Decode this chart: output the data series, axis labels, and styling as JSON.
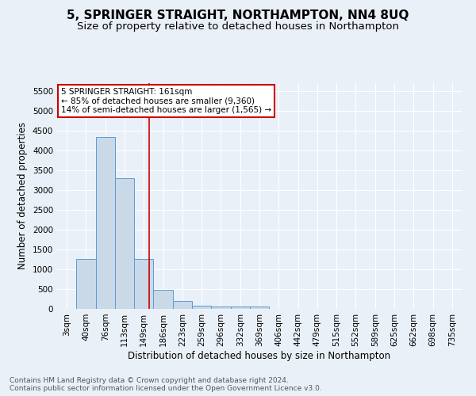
{
  "title": "5, SPRINGER STRAIGHT, NORTHAMPTON, NN4 8UQ",
  "subtitle": "Size of property relative to detached houses in Northampton",
  "xlabel": "Distribution of detached houses by size in Northampton",
  "ylabel": "Number of detached properties",
  "footnote1": "Contains HM Land Registry data © Crown copyright and database right 2024.",
  "footnote2": "Contains public sector information licensed under the Open Government Licence v3.0.",
  "bin_labels": [
    "3sqm",
    "40sqm",
    "76sqm",
    "113sqm",
    "149sqm",
    "186sqm",
    "223sqm",
    "259sqm",
    "296sqm",
    "332sqm",
    "369sqm",
    "406sqm",
    "442sqm",
    "479sqm",
    "515sqm",
    "552sqm",
    "589sqm",
    "625sqm",
    "662sqm",
    "698sqm",
    "735sqm"
  ],
  "bar_values": [
    0,
    1270,
    4350,
    3300,
    1270,
    480,
    210,
    90,
    65,
    60,
    60,
    0,
    0,
    0,
    0,
    0,
    0,
    0,
    0,
    0,
    0
  ],
  "bar_color": "#c9d9e8",
  "bar_edge_color": "#5b9bd5",
  "red_line_x": 4.27,
  "red_line_color": "#cc0000",
  "annotation_text": "5 SPRINGER STRAIGHT: 161sqm\n← 85% of detached houses are smaller (9,360)\n14% of semi-detached houses are larger (1,565) →",
  "annotation_box_color": "#ffffff",
  "annotation_box_edge": "#cc0000",
  "ylim": [
    0,
    5700
  ],
  "yticks": [
    0,
    500,
    1000,
    1500,
    2000,
    2500,
    3000,
    3500,
    4000,
    4500,
    5000,
    5500
  ],
  "background_color": "#eaf0f8",
  "title_fontsize": 11,
  "subtitle_fontsize": 9.5,
  "axis_fontsize": 8.5,
  "tick_fontsize": 7.5,
  "footnote_fontsize": 6.5,
  "annotation_fontsize": 7.5
}
